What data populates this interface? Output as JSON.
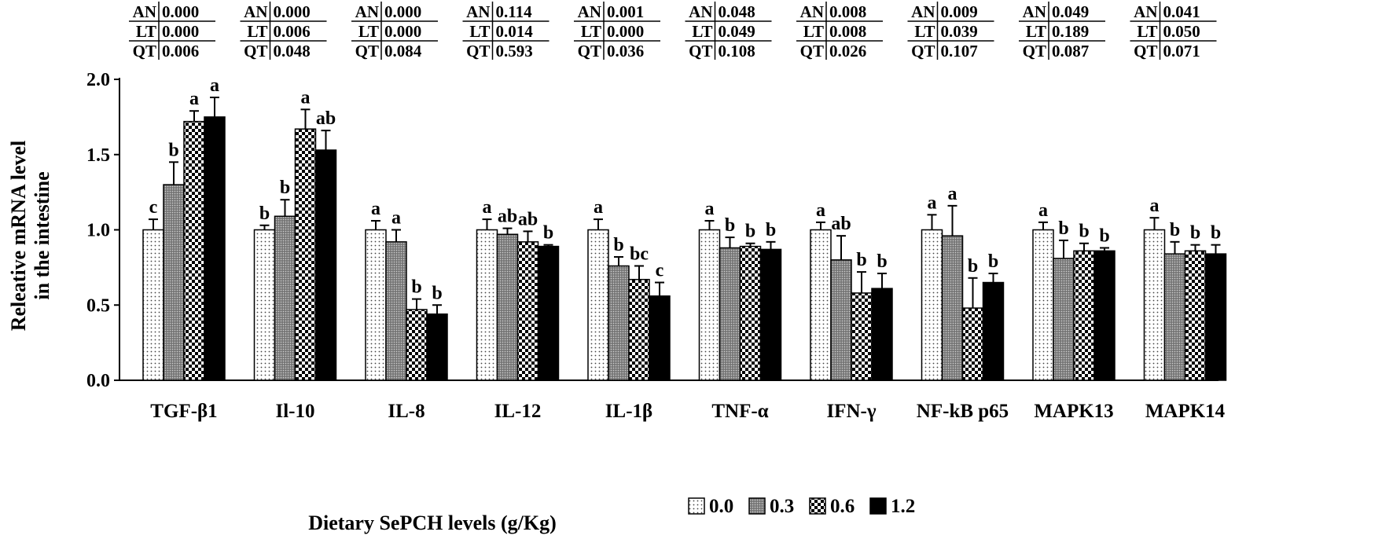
{
  "chart_data": {
    "type": "bar",
    "title": "",
    "xlabel": "Dietary SePCH levels (g/Kg)",
    "ylabel_lines": [
      "Releative mRNA level",
      "in the intestine"
    ],
    "ylim": [
      0,
      2.0
    ],
    "yticks": [
      0.0,
      0.5,
      1.0,
      1.5,
      2.0
    ],
    "ytick_labels": [
      "0.0",
      "0.5",
      "1.0",
      "1.5",
      "2.0"
    ],
    "grid": false,
    "legend_position": "bottom-right",
    "categories": [
      "TGF-β1",
      "Il-10",
      "IL-8",
      "IL-12",
      "IL-1β",
      "TNF-α",
      "IFN-γ",
      "NF-kB p65",
      "MAPK13",
      "MAPK14"
    ],
    "series": [
      {
        "name": "0.0",
        "pattern": "dots",
        "values": [
          1.0,
          1.0,
          1.0,
          1.0,
          1.0,
          1.0,
          1.0,
          1.0,
          1.0,
          1.0
        ],
        "errors": [
          0.07,
          0.03,
          0.06,
          0.07,
          0.07,
          0.06,
          0.05,
          0.1,
          0.05,
          0.08
        ],
        "letters": [
          "c",
          "b",
          "a",
          "a",
          "a",
          "a",
          "a",
          "a",
          "a",
          "a"
        ]
      },
      {
        "name": "0.3",
        "pattern": "gray",
        "values": [
          1.3,
          1.09,
          0.92,
          0.97,
          0.76,
          0.88,
          0.8,
          0.96,
          0.81,
          0.84
        ],
        "errors": [
          0.15,
          0.11,
          0.08,
          0.04,
          0.06,
          0.07,
          0.16,
          0.2,
          0.12,
          0.08
        ],
        "letters": [
          "b",
          "b",
          "a",
          "ab",
          "b",
          "b",
          "ab",
          "a",
          "b",
          "b"
        ]
      },
      {
        "name": "0.6",
        "pattern": "checker",
        "values": [
          1.72,
          1.67,
          0.47,
          0.92,
          0.67,
          0.89,
          0.58,
          0.48,
          0.86,
          0.86
        ],
        "errors": [
          0.07,
          0.13,
          0.07,
          0.07,
          0.09,
          0.02,
          0.14,
          0.2,
          0.05,
          0.04
        ],
        "letters": [
          "a",
          "a",
          "b",
          "ab",
          "bc",
          "b",
          "b",
          "b",
          "b",
          "b"
        ]
      },
      {
        "name": "1.2",
        "pattern": "black",
        "values": [
          1.75,
          1.53,
          0.44,
          0.89,
          0.56,
          0.87,
          0.61,
          0.65,
          0.86,
          0.84
        ],
        "errors": [
          0.13,
          0.13,
          0.06,
          0.01,
          0.09,
          0.05,
          0.1,
          0.06,
          0.02,
          0.06
        ],
        "letters": [
          "a",
          "ab",
          "b",
          "b",
          "c",
          "b",
          "b",
          "b",
          "b",
          "b"
        ]
      }
    ],
    "stats_tables": [
      {
        "AN": "0.000",
        "LT": "0.000",
        "QT": "0.006"
      },
      {
        "AN": "0.000",
        "LT": "0.006",
        "QT": "0.048"
      },
      {
        "AN": "0.000",
        "LT": "0.000",
        "QT": "0.084"
      },
      {
        "AN": "0.114",
        "LT": "0.014",
        "QT": "0.593"
      },
      {
        "AN": "0.001",
        "LT": "0.000",
        "QT": "0.036"
      },
      {
        "AN": "0.048",
        "LT": "0.049",
        "QT": "0.108"
      },
      {
        "AN": "0.008",
        "LT": "0.008",
        "QT": "0.026"
      },
      {
        "AN": "0.009",
        "LT": "0.039",
        "QT": "0.107"
      },
      {
        "AN": "0.049",
        "LT": "0.189",
        "QT": "0.087"
      },
      {
        "AN": "0.041",
        "LT": "0.050",
        "QT": "0.071"
      }
    ],
    "stats_row_labels": [
      "AN",
      "LT",
      "QT"
    ]
  }
}
